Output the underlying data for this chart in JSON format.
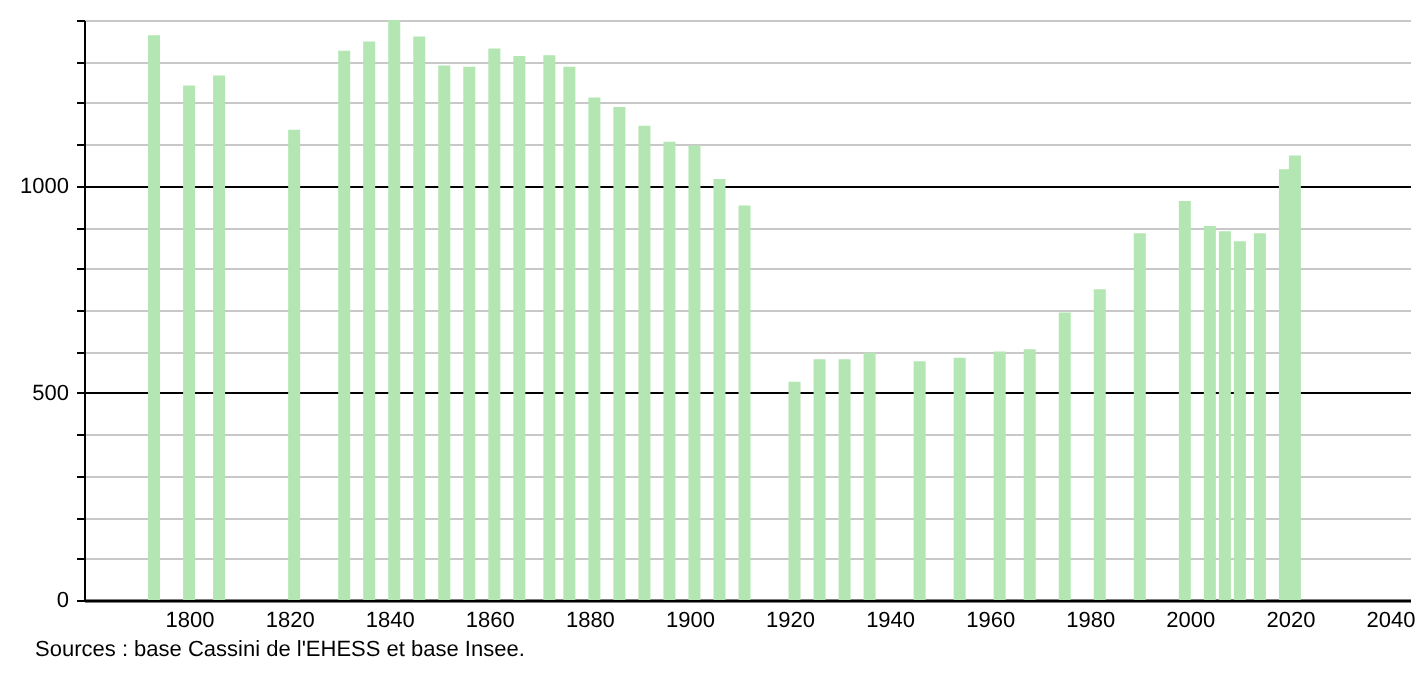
{
  "chart_data": {
    "type": "bar",
    "x": [
      1793,
      1800,
      1806,
      1821,
      1831,
      1836,
      1841,
      1846,
      1851,
      1856,
      1861,
      1866,
      1872,
      1876,
      1881,
      1886,
      1891,
      1896,
      1901,
      1906,
      1911,
      1921,
      1926,
      1931,
      1936,
      1946,
      1954,
      1962,
      1968,
      1975,
      1982,
      1990,
      1999,
      2004,
      2007,
      2010,
      2014,
      2019,
      2021
    ],
    "values": [
      1363,
      1242,
      1266,
      1135,
      1326,
      1348,
      1400,
      1360,
      1290,
      1287,
      1331,
      1313,
      1315,
      1287,
      1213,
      1190,
      1145,
      1106,
      1097,
      1016,
      952,
      527,
      581,
      581,
      597,
      576,
      585,
      600,
      605,
      694,
      750,
      885,
      963,
      903,
      890,
      866,
      885,
      1040,
      1073
    ],
    "color": "#b3e6b3",
    "xlim": [
      1779,
      2044
    ],
    "xticks": [
      1800,
      1820,
      1840,
      1860,
      1880,
      1900,
      1920,
      1940,
      1960,
      1980,
      2000,
      2020,
      2040
    ],
    "ylim": [
      0,
      1400
    ],
    "yticks": [
      0,
      {
        "value": 100,
        "label": null
      },
      {
        "value": 200,
        "label": null
      },
      {
        "value": 300,
        "label": null
      },
      {
        "value": 400,
        "label": null
      },
      500,
      {
        "value": 600,
        "label": null
      },
      {
        "value": 700,
        "label": null
      },
      {
        "value": 800,
        "label": null
      },
      {
        "value": 900,
        "label": null
      },
      1000,
      {
        "value": 1100,
        "label": null
      },
      {
        "value": 1200,
        "label": null
      },
      {
        "value": 1300,
        "label": null
      },
      {
        "value": 1400,
        "label": null
      }
    ],
    "grid": true,
    "annotations": [
      "Sources : base Cassini de l'EHESS et base Insee."
    ]
  }
}
